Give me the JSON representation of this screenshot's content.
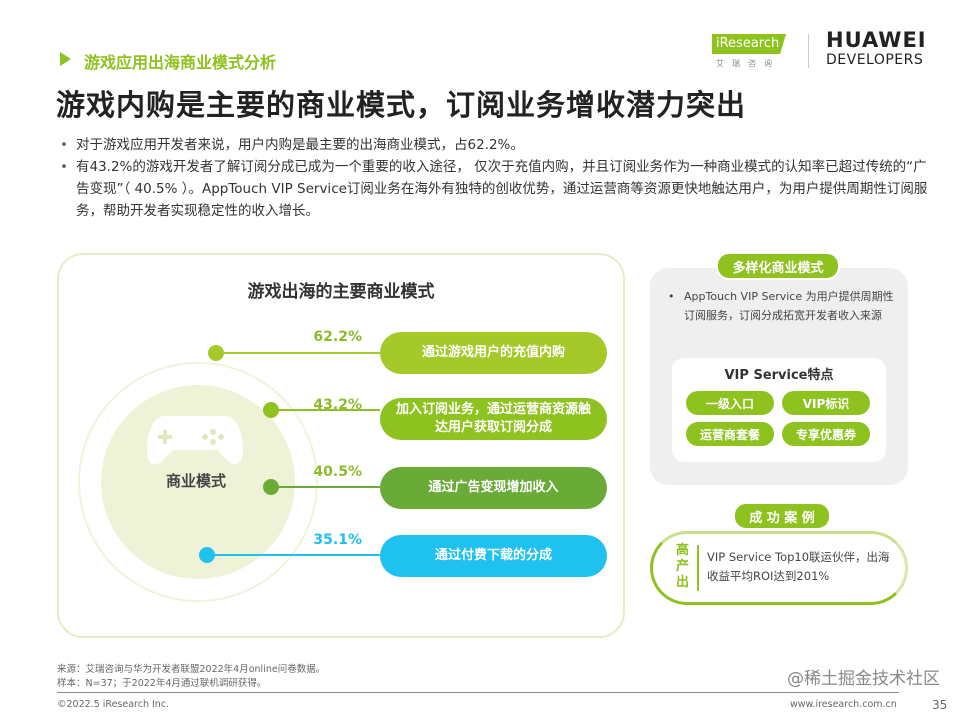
{
  "header": {
    "section_title": "游戏应用出海商业模式分析",
    "title": "游戏内购是主要的商业模式，订阅业务增收潜力突出",
    "logos": {
      "iresearch": "iResearch",
      "iresearch_sub": "艾瑞咨询",
      "huawei": "HUAWEI",
      "developers": "DEVELOPERS"
    }
  },
  "bullets": [
    "对于游戏应用开发者来说，用户内购是最主要的出海商业模式，占62.2%。",
    "有43.2%的游戏开发者了解订阅分成已成为一个重要的收入途径， 仅次于充值内购，并且订阅业务作为一种商业模式的认知率已超过传统的“广告变现”（ 40.5% ）。AppTouch VIP Service订阅业务在海外有独特的创收优势，通过运营商等资源更快地触达用户，为用户提供周期性订阅服务，帮助开发者实现稳定性的收入增长。"
  ],
  "left_panel": {
    "title": "游戏出海的主要商业模式",
    "center_label": "商业模式",
    "icon": "gamepad-icon",
    "items": [
      {
        "percent": "62.2%",
        "label": "通过游戏用户的充值内购",
        "color": "#a5c928"
      },
      {
        "percent": "43.2%",
        "label": "加入订阅业务，通过运营商资源触达用户获取订阅分成",
        "color": "#8dc21f"
      },
      {
        "percent": "40.5%",
        "label": "通过广告变现增加收入",
        "color": "#6aab37"
      },
      {
        "percent": "35.1%",
        "label": "通过付费下载的分成",
        "color": "#1fc1ee"
      }
    ]
  },
  "right_panel": {
    "title": "多样化商业模式",
    "text": "AppTouch VIP Service 为用户提供周期性订阅服务，订阅分成拓宽开发者收入来源",
    "vip_title": "VIP Service特点",
    "chips": [
      "一级入口",
      "VIP标识",
      "运营商套餐",
      "专享优惠券"
    ],
    "case_title": "成 功 案 例",
    "case_side": "高产出",
    "case_text": "VIP Service  Top10联运伙伴，出海收益平均ROI达到201%"
  },
  "footer": {
    "source": "来源：艾瑞咨询与华为开发者联盟2022年4月online问卷数据。",
    "sample": "样本：N=37；于2022年4月通过联机调研获得。",
    "copyright": "©2022.5 iResearch Inc.",
    "website": "www.iresearch.com.cn",
    "page": "35",
    "watermark": "@稀土掘金技术社区"
  },
  "colors": {
    "accent": "#8dc21f",
    "blue": "#1fc1ee"
  }
}
